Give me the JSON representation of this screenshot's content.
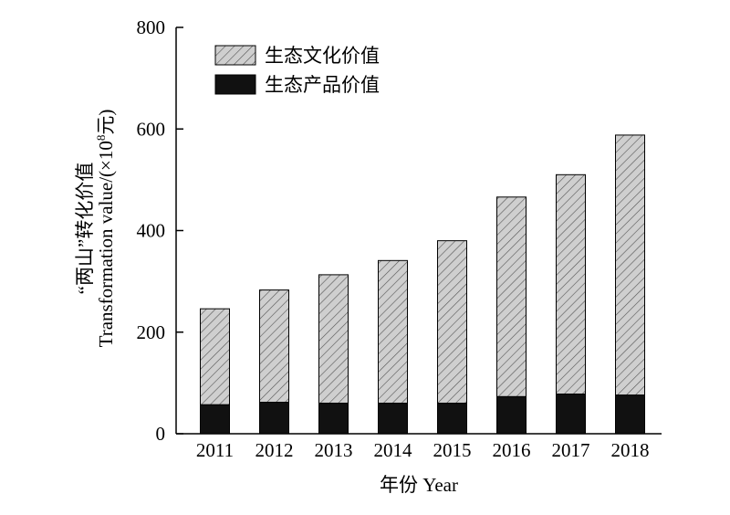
{
  "chart_data": {
    "type": "bar",
    "stacked": true,
    "categories": [
      "2011",
      "2012",
      "2013",
      "2014",
      "2015",
      "2016",
      "2017",
      "2018"
    ],
    "series": [
      {
        "name": "生态产品价值",
        "values": [
          57,
          62,
          60,
          60,
          60,
          73,
          78,
          76
        ],
        "color": "#111111",
        "pattern": "solid"
      },
      {
        "name": "生态文化价值",
        "values": [
          189,
          221,
          253,
          281,
          320,
          393,
          432,
          512
        ],
        "color": "#c8c8c8",
        "pattern": "diagonal-hatch"
      }
    ],
    "totals": [
      246,
      283,
      313,
      341,
      380,
      466,
      510,
      588
    ],
    "xlabel": "年份 Year",
    "ylabel_line1": "“两山”转化价值",
    "ylabel_line2_prefix": "Transformation value/(×10",
    "ylabel_line2_sup": "8",
    "ylabel_line2_suffix": "元)",
    "ylim": [
      0,
      800
    ],
    "yticks": [
      0,
      200,
      400,
      600,
      800
    ],
    "legend_position": "top-left",
    "grid": false
  }
}
